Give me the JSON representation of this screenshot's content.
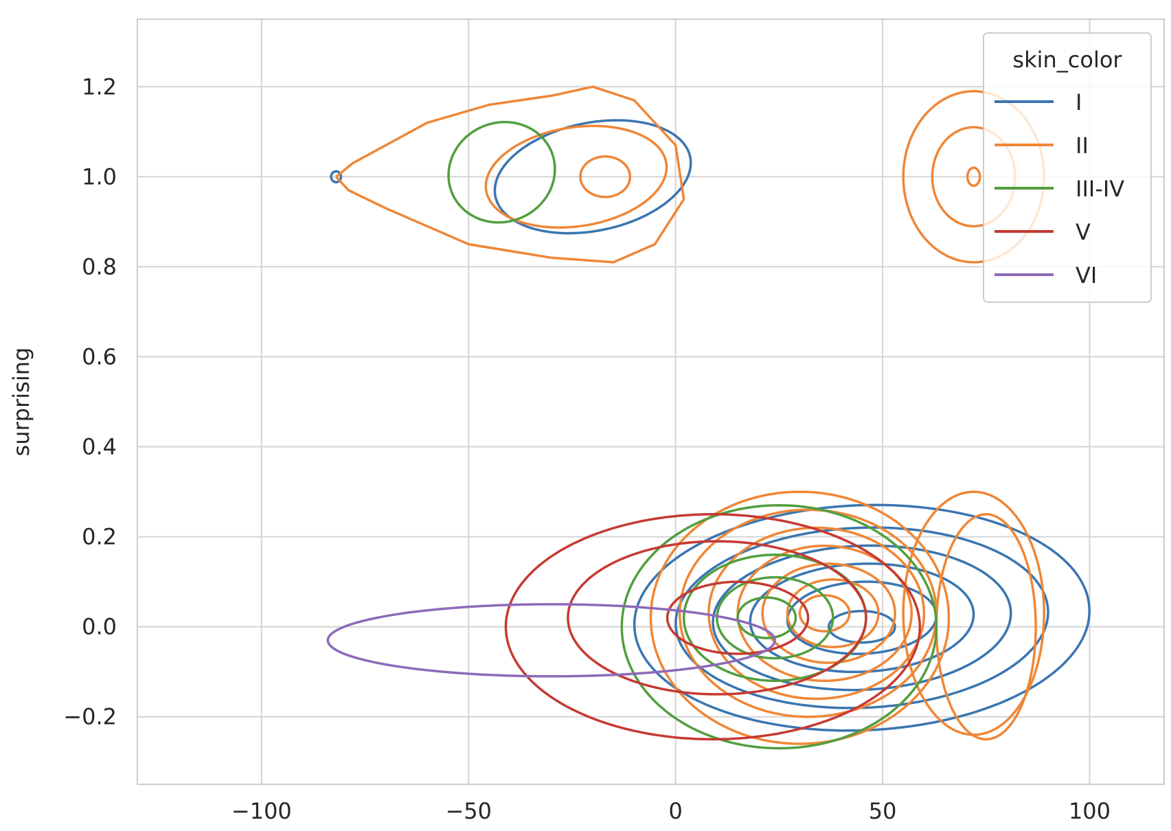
{
  "chart_data": {
    "type": "contour",
    "title": "",
    "xlabel": "",
    "ylabel": "surprising",
    "xlim": [
      -130,
      118
    ],
    "ylim": [
      -0.35,
      1.35
    ],
    "xticks": [
      -100,
      -50,
      0,
      50,
      100
    ],
    "xtick_labels": [
      "−100",
      "−50",
      "0",
      "50",
      "100"
    ],
    "yticks": [
      -0.2,
      0.0,
      0.2,
      0.4,
      0.6,
      0.8,
      1.0,
      1.2
    ],
    "ytick_labels": [
      "−0.2",
      "0.0",
      "0.2",
      "0.4",
      "0.6",
      "0.8",
      "1.0",
      "1.2"
    ],
    "grid": true,
    "legend": {
      "title": "skin_color",
      "placement": "top-right",
      "entries": [
        {
          "label": "I",
          "color": "#3a75b0"
        },
        {
          "label": "II",
          "color": "#ef8636"
        },
        {
          "label": "III-IV",
          "color": "#519e3e"
        },
        {
          "label": "V",
          "color": "#c53a32"
        },
        {
          "label": "VI",
          "color": "#8d69b8"
        }
      ]
    },
    "series": [
      {
        "name": "I",
        "color": "#3a75b0",
        "contours": [
          {
            "type": "ellipse",
            "cx": 45,
            "cy": 0.02,
            "rx": 55,
            "ry": 0.25,
            "rot": -0.04,
            "clip": null
          },
          {
            "type": "ellipse",
            "cx": 45,
            "cy": 0.02,
            "rx": 45,
            "ry": 0.2,
            "rot": -0.04,
            "clip": null
          },
          {
            "type": "ellipse",
            "cx": 45,
            "cy": 0.02,
            "rx": 36,
            "ry": 0.16,
            "rot": -0.04,
            "clip": null
          },
          {
            "type": "ellipse",
            "cx": 45,
            "cy": 0.02,
            "rx": 27,
            "ry": 0.12,
            "rot": -0.04,
            "clip": null
          },
          {
            "type": "ellipse",
            "cx": 45,
            "cy": 0.02,
            "rx": 18,
            "ry": 0.08,
            "rot": -0.04,
            "clip": null
          },
          {
            "type": "ellipse",
            "cx": 45,
            "cy": 0.0,
            "rx": 8,
            "ry": 0.035,
            "rot": 0,
            "clip": null
          },
          {
            "type": "ellipse",
            "cx": -20,
            "cy": 1.0,
            "rx": 24,
            "ry": 0.12,
            "rot": -0.2,
            "clip": null
          },
          {
            "type": "ellipse",
            "cx": -82,
            "cy": 1.0,
            "rx": 1.2,
            "ry": 0.012,
            "rot": 0,
            "clip": null
          }
        ]
      },
      {
        "name": "II",
        "color": "#ef8636",
        "contours": [
          {
            "type": "ellipse",
            "cx": 30,
            "cy": 0.02,
            "rx": 36,
            "ry": 0.28,
            "rot": 0,
            "clip": -0.29
          },
          {
            "type": "ellipse",
            "cx": 32,
            "cy": 0.03,
            "rx": 31,
            "ry": 0.23,
            "rot": 0,
            "clip": -0.29
          },
          {
            "type": "ellipse",
            "cx": 34,
            "cy": 0.03,
            "rx": 26,
            "ry": 0.19,
            "rot": 0,
            "clip": null
          },
          {
            "type": "ellipse",
            "cx": 36,
            "cy": 0.03,
            "rx": 21,
            "ry": 0.15,
            "rot": 0,
            "clip": null
          },
          {
            "type": "ellipse",
            "cx": 37,
            "cy": 0.03,
            "rx": 16,
            "ry": 0.11,
            "rot": 0,
            "clip": null
          },
          {
            "type": "ellipse",
            "cx": 38,
            "cy": 0.03,
            "rx": 11,
            "ry": 0.075,
            "rot": 0,
            "clip": null
          },
          {
            "type": "ellipse",
            "cx": 36,
            "cy": 0.03,
            "rx": 6,
            "ry": 0.04,
            "rot": 0,
            "clip": null
          },
          {
            "type": "ellipse",
            "cx": 75,
            "cy": 0.0,
            "rx": 12,
            "ry": 0.25,
            "rot": 0,
            "clip": null
          },
          {
            "type": "ellipse",
            "cx": 72,
            "cy": 0.03,
            "rx": 17,
            "ry": 0.27,
            "rot": 0,
            "clip": null
          },
          {
            "type": "ellipse",
            "cx": 72,
            "cy": 1.0,
            "rx": 17,
            "ry": 0.19,
            "rot": 0,
            "clip": null
          },
          {
            "type": "ellipse",
            "cx": 72,
            "cy": 1.0,
            "rx": 10,
            "ry": 0.11,
            "rot": 0,
            "clip": null
          },
          {
            "type": "ellipse",
            "cx": 72,
            "cy": 1.0,
            "rx": 1.5,
            "ry": 0.02,
            "rot": 0,
            "clip": null
          },
          {
            "type": "path",
            "points": [
              [
                -82,
                1.0
              ],
              [
                -78,
                1.03
              ],
              [
                -70,
                1.07
              ],
              [
                -60,
                1.12
              ],
              [
                -45,
                1.16
              ],
              [
                -30,
                1.18
              ],
              [
                -20,
                1.2
              ],
              [
                -10,
                1.17
              ],
              [
                0,
                1.07
              ],
              [
                2,
                0.95
              ],
              [
                -5,
                0.85
              ],
              [
                -15,
                0.81
              ],
              [
                -30,
                0.82
              ],
              [
                -50,
                0.85
              ],
              [
                -70,
                0.93
              ],
              [
                -79,
                0.97
              ],
              [
                -82,
                1.0
              ]
            ]
          },
          {
            "type": "ellipse",
            "cx": -24,
            "cy": 1.0,
            "rx": 22,
            "ry": 0.11,
            "rot": -0.15,
            "clip": null
          },
          {
            "type": "ellipse",
            "cx": -17,
            "cy": 1.0,
            "rx": 6,
            "ry": 0.045,
            "rot": 0,
            "clip": null
          }
        ]
      },
      {
        "name": "III-IV",
        "color": "#519e3e",
        "contours": [
          {
            "type": "ellipse",
            "cx": 25,
            "cy": 0.0,
            "rx": 38,
            "ry": 0.27,
            "rot": 0,
            "clip": null
          },
          {
            "type": "ellipse",
            "cx": 24,
            "cy": 0.02,
            "rx": 22,
            "ry": 0.14,
            "rot": 0,
            "clip": null
          },
          {
            "type": "ellipse",
            "cx": 24,
            "cy": 0.02,
            "rx": 14,
            "ry": 0.09,
            "rot": 0,
            "clip": null
          },
          {
            "type": "ellipse",
            "cx": 22,
            "cy": 0.02,
            "rx": 7,
            "ry": 0.045,
            "rot": 0,
            "clip": null
          },
          {
            "type": "ellipse",
            "cx": -42,
            "cy": 1.01,
            "rx": 13,
            "ry": 0.11,
            "rot": -0.4,
            "clip": null
          }
        ]
      },
      {
        "name": "V",
        "color": "#c53a32",
        "contours": [
          {
            "type": "ellipse",
            "cx": 9,
            "cy": 0.0,
            "rx": 50,
            "ry": 0.25,
            "rot": 0,
            "clip": null
          },
          {
            "type": "ellipse",
            "cx": 10,
            "cy": 0.02,
            "rx": 36,
            "ry": 0.17,
            "rot": 0,
            "clip": null
          },
          {
            "type": "ellipse",
            "cx": 15,
            "cy": 0.02,
            "rx": 17,
            "ry": 0.08,
            "rot": 0,
            "clip": null
          }
        ]
      },
      {
        "name": "VI",
        "color": "#8d69b8",
        "contours": [
          {
            "type": "ellipse",
            "cx": -30,
            "cy": -0.03,
            "rx": 54,
            "ry": 0.08,
            "rot": 0,
            "clip": null
          }
        ]
      }
    ]
  }
}
